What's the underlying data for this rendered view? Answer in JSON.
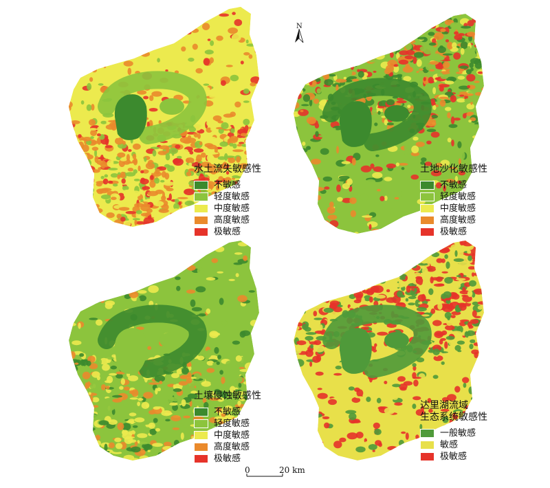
{
  "north_label": "N",
  "scale": {
    "zero": "0",
    "distance": "20 km"
  },
  "colors": {
    "not_sensitive": "#3c8a2e",
    "slight": "#8cc43d",
    "moderate": "#ecea4e",
    "high": "#ea8a2c",
    "extreme": "#e6332a",
    "general": "#4f9a3a",
    "sensitive": "#e8e04a"
  },
  "panels": [
    {
      "id": "water-soil-loss",
      "title": [
        "水土流失敏感性"
      ],
      "legend": [
        {
          "label": "不敏感",
          "color": "#3c8a2e"
        },
        {
          "label": "轻度敏感",
          "color": "#8cc43d"
        },
        {
          "label": "中度敏感",
          "color": "#ecea4e"
        },
        {
          "label": "高度敏感",
          "color": "#ea8a2c"
        },
        {
          "label": "极敏感",
          "color": "#e6332a"
        }
      ]
    },
    {
      "id": "desertification",
      "title": [
        "土地沙化敏感性"
      ],
      "legend": [
        {
          "label": "不敏感",
          "color": "#3c8a2e"
        },
        {
          "label": "轻度敏感",
          "color": "#8cc43d"
        },
        {
          "label": "中度敏感",
          "color": "#ecea4e"
        },
        {
          "label": "高度敏感",
          "color": "#ea8a2c"
        },
        {
          "label": "极敏感",
          "color": "#e6332a"
        }
      ]
    },
    {
      "id": "soil-erosion",
      "title": [
        "土壤侵蚀敏感性"
      ],
      "legend": [
        {
          "label": "不敏感",
          "color": "#3c8a2e"
        },
        {
          "label": "轻度敏感",
          "color": "#8cc43d"
        },
        {
          "label": "中度敏感",
          "color": "#ecea4e"
        },
        {
          "label": "高度敏感",
          "color": "#ea8a2c"
        },
        {
          "label": "极敏感",
          "color": "#e6332a"
        }
      ]
    },
    {
      "id": "ecosystem",
      "title": [
        "达里湖流域",
        "生态系统敏感性"
      ],
      "legend": [
        {
          "label": "一般敏感",
          "color": "#4f9a3a"
        },
        {
          "label": "敏感",
          "color": "#e8e04a"
        },
        {
          "label": "极敏感",
          "color": "#e6332a"
        }
      ]
    }
  ]
}
